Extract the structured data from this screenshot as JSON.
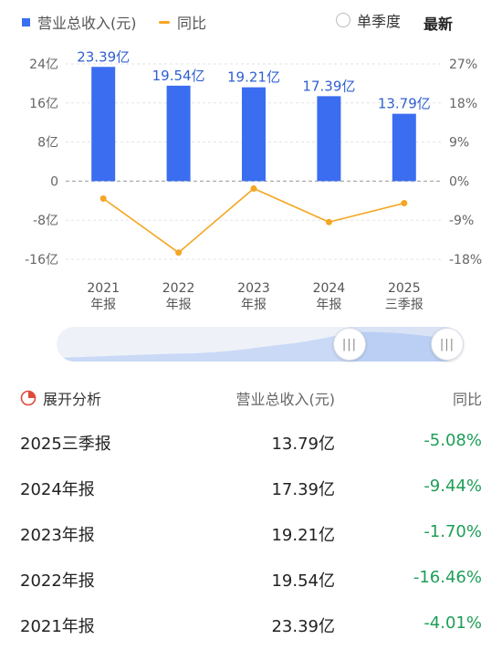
{
  "legend": {
    "revenue": "营业总收入(元)",
    "yoy": "同比"
  },
  "controls": {
    "single_quarter": "单季度",
    "latest": "最新"
  },
  "colors": {
    "bar": "#3a6df0",
    "line": "#f5a623",
    "positive_text": "#1e9e57"
  },
  "chart_data": {
    "type": "bar",
    "categories": [
      "2021\n年报",
      "2022\n年报",
      "2023\n年报",
      "2024\n年报",
      "2025\n三季报"
    ],
    "series": [
      {
        "name": "营业总收入(元)",
        "type": "bar",
        "axis": "left",
        "values": [
          23.39,
          19.54,
          19.21,
          17.39,
          13.79
        ],
        "labels": [
          "23.39亿",
          "19.54亿",
          "19.21亿",
          "17.39亿",
          "13.79亿"
        ]
      },
      {
        "name": "同比",
        "type": "line",
        "axis": "right",
        "values": [
          -4.01,
          -16.46,
          -1.7,
          -9.44,
          -5.08
        ]
      }
    ],
    "y_left": {
      "ticks": [
        24,
        16,
        8,
        0,
        -8,
        -16
      ],
      "tick_labels": [
        "24亿",
        "16亿",
        "8亿",
        "0",
        "-8亿",
        "-16亿"
      ],
      "range": [
        -16,
        24
      ]
    },
    "y_right": {
      "ticks": [
        27,
        18,
        9,
        0,
        -9,
        -18
      ],
      "tick_labels": [
        "27%",
        "18%",
        "9%",
        "0%",
        "-9%",
        "-18%"
      ],
      "range": [
        -18,
        27
      ]
    },
    "grid": true
  },
  "table": {
    "expand_label": "展开分析",
    "header_revenue": "营业总收入(元)",
    "header_yoy": "同比",
    "rows": [
      {
        "period": "2025三季报",
        "revenue": "13.79亿",
        "yoy": "-5.08%"
      },
      {
        "period": "2024年报",
        "revenue": "17.39亿",
        "yoy": "-9.44%"
      },
      {
        "period": "2023年报",
        "revenue": "19.21亿",
        "yoy": "-1.70%"
      },
      {
        "period": "2022年报",
        "revenue": "19.54亿",
        "yoy": "-16.46%"
      },
      {
        "period": "2021年报",
        "revenue": "23.39亿",
        "yoy": "-4.01%"
      }
    ]
  },
  "slider": {
    "handle_glyph": "|||"
  }
}
